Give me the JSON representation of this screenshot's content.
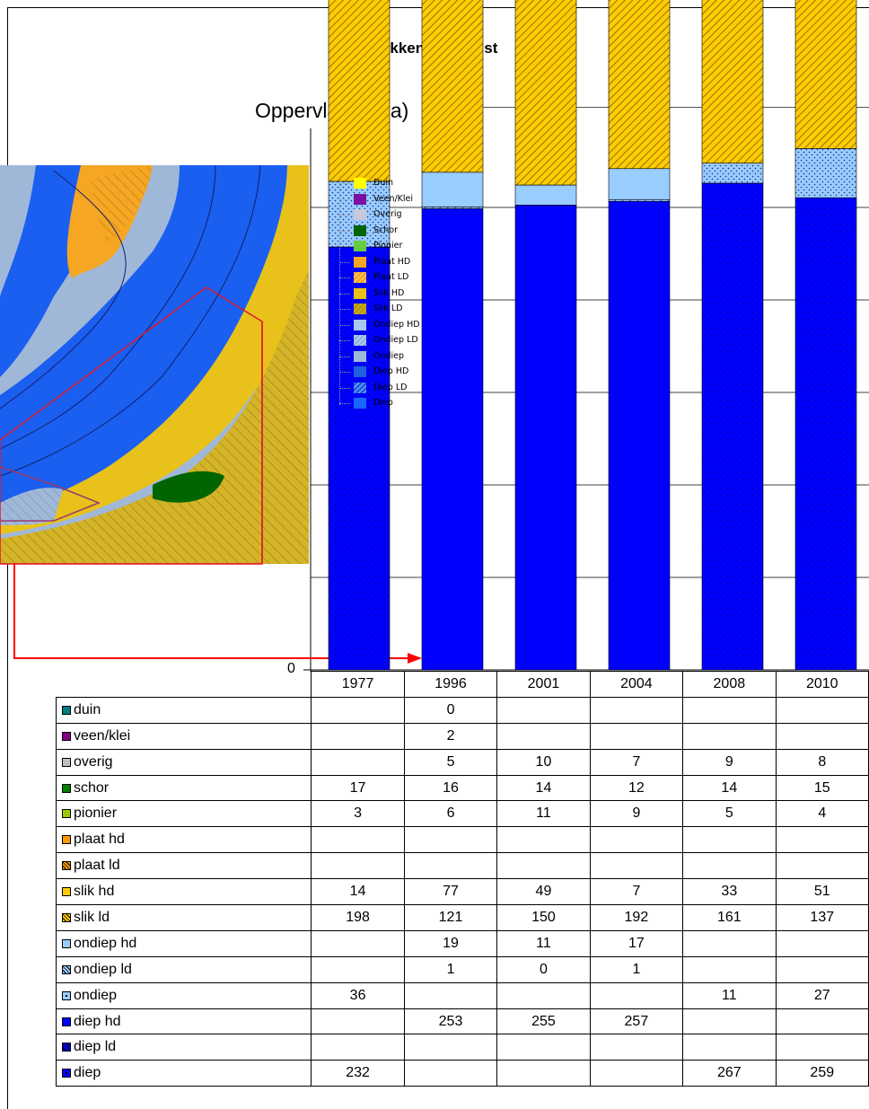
{
  "chart_data": {
    "type": "bar",
    "stacked": true,
    "title": "Slikken van Hulst",
    "ylabel": "Oppervlakte (ha)",
    "y_tick_label": "0",
    "categories": [
      "1977",
      "1996",
      "2001",
      "2004",
      "2008",
      "2010"
    ],
    "series": [
      {
        "name": "duin",
        "color": "#008080",
        "pattern": "solid",
        "values": [
          null,
          0,
          null,
          null,
          null,
          null
        ]
      },
      {
        "name": "veen/klei",
        "color": "#800080",
        "pattern": "solid",
        "values": [
          null,
          2,
          null,
          null,
          null,
          null
        ]
      },
      {
        "name": "overig",
        "color": "#c0c0c0",
        "pattern": "solid",
        "values": [
          null,
          5,
          10,
          7,
          9,
          8
        ]
      },
      {
        "name": "schor",
        "color": "#008000",
        "pattern": "solid",
        "values": [
          17,
          16,
          14,
          12,
          14,
          15
        ]
      },
      {
        "name": "pionier",
        "color": "#99cc00",
        "pattern": "solid",
        "values": [
          3,
          6,
          11,
          9,
          5,
          4
        ]
      },
      {
        "name": "plaat hd",
        "color": "#ff9900",
        "pattern": "solid",
        "values": [
          null,
          null,
          null,
          null,
          null,
          null
        ]
      },
      {
        "name": "plaat ld",
        "color": "#ff9900",
        "pattern": "hatch",
        "values": [
          null,
          null,
          null,
          null,
          null,
          null
        ]
      },
      {
        "name": "slik hd",
        "color": "#ffcc00",
        "pattern": "solid",
        "values": [
          14,
          77,
          49,
          7,
          33,
          51
        ]
      },
      {
        "name": "slik ld",
        "color": "#ffcc00",
        "pattern": "hatch",
        "values": [
          198,
          121,
          150,
          192,
          161,
          137
        ]
      },
      {
        "name": "ondiep hd",
        "color": "#99ccff",
        "pattern": "solid",
        "values": [
          null,
          19,
          11,
          17,
          null,
          null
        ]
      },
      {
        "name": "ondiep ld",
        "color": "#99ccff",
        "pattern": "hatch",
        "values": [
          null,
          1,
          0,
          1,
          null,
          null
        ]
      },
      {
        "name": "ondiep",
        "color": "#99ccff",
        "pattern": "dots",
        "values": [
          36,
          null,
          null,
          null,
          11,
          27
        ]
      },
      {
        "name": "diep hd",
        "color": "#0000ff",
        "pattern": "solid",
        "values": [
          null,
          253,
          255,
          257,
          null,
          null
        ]
      },
      {
        "name": "diep ld",
        "color": "#0000ff",
        "pattern": "hatch",
        "values": [
          null,
          null,
          null,
          null,
          null,
          null
        ]
      },
      {
        "name": "diep",
        "color": "#0000ff",
        "pattern": "dots",
        "values": [
          232,
          null,
          null,
          null,
          267,
          259
        ]
      }
    ]
  },
  "map_legend": {
    "items": [
      {
        "label": "Duin",
        "color": "#ffff00",
        "pattern": "solid"
      },
      {
        "label": "Veen/Klei",
        "color": "#7b0fa3",
        "pattern": "solid"
      },
      {
        "label": "Overig",
        "color": "#c8c8d8",
        "pattern": "solid"
      },
      {
        "label": "Schor",
        "color": "#006400",
        "pattern": "solid"
      },
      {
        "label": "Pionier",
        "color": "#66cc44",
        "pattern": "solid"
      },
      {
        "label": "Plaat HD",
        "color": "#f5a623",
        "pattern": "solid"
      },
      {
        "label": "Plaat LD",
        "color": "#f5a623",
        "pattern": "hatch"
      },
      {
        "label": "Slik HD",
        "color": "#e8c21a",
        "pattern": "solid"
      },
      {
        "label": "Slik LD",
        "color": "#c8a81a",
        "pattern": "hatch"
      },
      {
        "label": "Ondiep HD",
        "color": "#a8c8f0",
        "pattern": "solid"
      },
      {
        "label": "Ondiep LD",
        "color": "#a8c8f0",
        "pattern": "hatch"
      },
      {
        "label": "Ondiep",
        "color": "#a0b8d8",
        "pattern": "solid"
      },
      {
        "label": "Diep HD",
        "color": "#1f5fe0",
        "pattern": "solid"
      },
      {
        "label": "Diep LD",
        "color": "#1f5fe0",
        "pattern": "hatch"
      },
      {
        "label": "Diep",
        "color": "#1a66ff",
        "pattern": "solid"
      }
    ]
  },
  "colors": {
    "arrow": "#ff0000",
    "map_water": "#1a5ff0",
    "map_shallow": "#a0b8d8"
  }
}
